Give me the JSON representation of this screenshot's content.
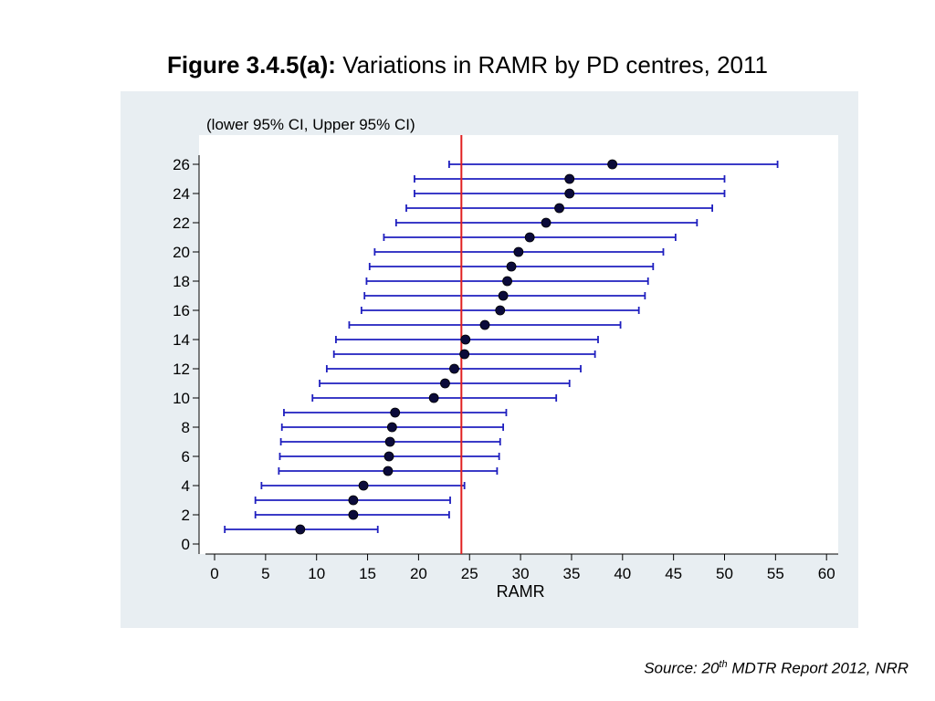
{
  "title": {
    "bold": "Figure 3.4.5(a):",
    "rest": "Variations in RAMR by PD centres, 2011"
  },
  "source": {
    "prefix": "Source: 20",
    "sup": "th",
    "suffix": " MDTR Report 2012, NRR"
  },
  "chart_data": {
    "type": "scatter",
    "subtitle": "(lower 95% CI, Upper 95% CI)",
    "xlabel": "RAMR",
    "ylabel": "",
    "xlim": [
      0,
      60
    ],
    "ylim": [
      0,
      26
    ],
    "xticks": [
      0,
      5,
      10,
      15,
      20,
      25,
      30,
      35,
      40,
      45,
      50,
      55,
      60
    ],
    "yticks": [
      0,
      2,
      4,
      6,
      8,
      10,
      12,
      14,
      16,
      18,
      20,
      22,
      24,
      26
    ],
    "reference_line_x": 24.2,
    "grid": false,
    "colors": {
      "plot_background": "#e8eef2",
      "plot_area": "#ffffff",
      "ci_bar": "#1f1fbf",
      "point": "#0b0b3a",
      "reference_line": "#e02020"
    },
    "points": [
      {
        "y": 1,
        "x": 8.4,
        "lower": 1.0,
        "upper": 16.0
      },
      {
        "y": 2,
        "x": 13.6,
        "lower": 4.0,
        "upper": 23.0
      },
      {
        "y": 3,
        "x": 13.6,
        "lower": 4.0,
        "upper": 23.1
      },
      {
        "y": 4,
        "x": 14.6,
        "lower": 4.6,
        "upper": 24.5
      },
      {
        "y": 5,
        "x": 17.0,
        "lower": 6.3,
        "upper": 27.7
      },
      {
        "y": 6,
        "x": 17.1,
        "lower": 6.4,
        "upper": 27.9
      },
      {
        "y": 7,
        "x": 17.2,
        "lower": 6.5,
        "upper": 28.0
      },
      {
        "y": 8,
        "x": 17.4,
        "lower": 6.6,
        "upper": 28.3
      },
      {
        "y": 9,
        "x": 17.7,
        "lower": 6.8,
        "upper": 28.6
      },
      {
        "y": 10,
        "x": 21.5,
        "lower": 9.6,
        "upper": 33.5
      },
      {
        "y": 11,
        "x": 22.6,
        "lower": 10.3,
        "upper": 34.8
      },
      {
        "y": 12,
        "x": 23.5,
        "lower": 11.0,
        "upper": 35.9
      },
      {
        "y": 13,
        "x": 24.5,
        "lower": 11.7,
        "upper": 37.3
      },
      {
        "y": 14,
        "x": 24.6,
        "lower": 11.9,
        "upper": 37.6
      },
      {
        "y": 15,
        "x": 26.5,
        "lower": 13.2,
        "upper": 39.8
      },
      {
        "y": 16,
        "x": 28.0,
        "lower": 14.4,
        "upper": 41.6
      },
      {
        "y": 17,
        "x": 28.3,
        "lower": 14.7,
        "upper": 42.2
      },
      {
        "y": 18,
        "x": 28.7,
        "lower": 14.9,
        "upper": 42.5
      },
      {
        "y": 19,
        "x": 29.1,
        "lower": 15.2,
        "upper": 43.0
      },
      {
        "y": 20,
        "x": 29.8,
        "lower": 15.7,
        "upper": 44.0
      },
      {
        "y": 21,
        "x": 30.9,
        "lower": 16.6,
        "upper": 45.2
      },
      {
        "y": 22,
        "x": 32.5,
        "lower": 17.8,
        "upper": 47.3
      },
      {
        "y": 23,
        "x": 33.8,
        "lower": 18.8,
        "upper": 48.8
      },
      {
        "y": 24,
        "x": 34.8,
        "lower": 19.6,
        "upper": 50.0
      },
      {
        "y": 25,
        "x": 34.8,
        "lower": 19.6,
        "upper": 50.0
      },
      {
        "y": 26,
        "x": 39.0,
        "lower": 23.0,
        "upper": 55.2
      }
    ]
  }
}
